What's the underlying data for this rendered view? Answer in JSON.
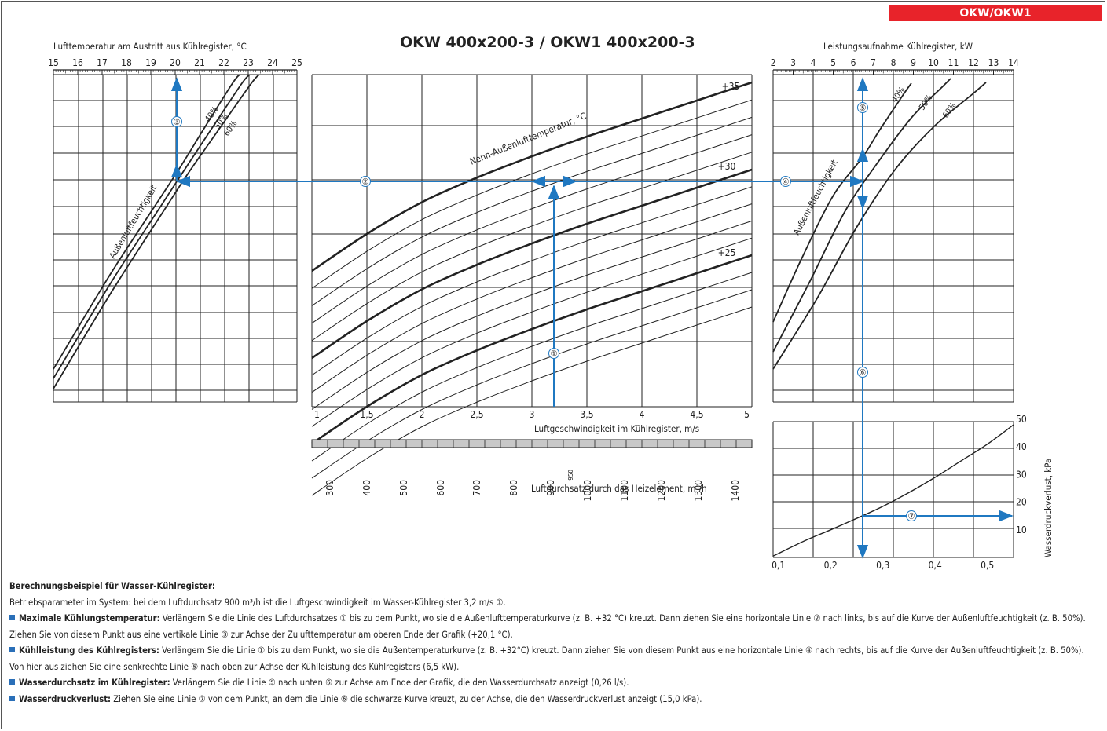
{
  "badge": "OKW/OKW1",
  "title": "OKW 400x200-3 / OKW1 400x200-3",
  "chart_data": [
    {
      "type": "line",
      "xlabel": "Lufttemperatur am Austritt aus Kühlregister, °C",
      "x_ticks": [
        15,
        16,
        17,
        18,
        19,
        20,
        21,
        22,
        23,
        24,
        25
      ],
      "xlim": [
        15,
        25
      ],
      "series": [
        {
          "name": "40%"
        },
        {
          "name": "50%"
        },
        {
          "name": "60%"
        }
      ],
      "curve_label": "Außenluftfeuchtigkeit",
      "grid": true
    },
    {
      "type": "line",
      "curve_label": "Nenn-Außenlufttemperatur, °C",
      "series": [
        {
          "name": "+35"
        },
        {
          "name": "+30"
        },
        {
          "name": "+25"
        }
      ],
      "xlabel": "Luftgeschwindigkeit im Kühlregister, m/s",
      "x_ticks": [
        "1",
        "1,5",
        "2",
        "2,5",
        "3",
        "3,5",
        "4",
        "4,5",
        "5"
      ],
      "xlim": [
        1,
        5
      ],
      "x2label": "Luftdurchsatz durch das Heizelement, m³/h",
      "x2_ticks": [
        "300",
        "400",
        "500",
        "600",
        "700",
        "800",
        "900",
        "950",
        "1000",
        "1100",
        "1200",
        "1300",
        "1400"
      ],
      "grid": true
    },
    {
      "type": "line",
      "xlabel": "Leistungsaufnahme Kühlregister, kW",
      "x_ticks": [
        2,
        3,
        4,
        5,
        6,
        7,
        8,
        9,
        10,
        11,
        12,
        13,
        14
      ],
      "xlim": [
        2,
        14
      ],
      "series": [
        {
          "name": "40%"
        },
        {
          "name": "50%"
        },
        {
          "name": "60%"
        }
      ],
      "curve_label": "Außenluftfeuchtigkeit",
      "grid": true
    },
    {
      "type": "line",
      "xlabel": "Wasserdurchsatz im Kühlregister, l/s",
      "x_ticks": [
        "0,1",
        "0,2",
        "0,3",
        "0,4",
        "0,5"
      ],
      "xlim": [
        0.09,
        0.55
      ],
      "ylabel": "Wasserdruckverlust, kPa",
      "y_ticks": [
        10,
        20,
        30,
        40,
        50
      ],
      "ylim": [
        0,
        50
      ],
      "series": [
        {
          "x": [
            0.09,
            0.15,
            0.2,
            0.26,
            0.3,
            0.35,
            0.4,
            0.45,
            0.5,
            0.55
          ],
          "y": [
            0.5,
            6,
            10,
            15,
            18.5,
            23.5,
            29,
            35,
            41,
            48
          ]
        }
      ],
      "grid": true
    }
  ],
  "markers": [
    "①",
    "②",
    "③",
    "④",
    "⑤",
    "⑥",
    "⑦"
  ],
  "description": {
    "heading": "Berechnungsbeispiel für Wasser-Kühlregister:",
    "intro_a": "Betriebsparameter im System: bei dem Luftdurchsatz 900 m³/h ist die Luftgeschwindigkeit im Wasser-Kühlregister 3,2 m/s ",
    "intro_b": ".",
    "p1_label": "Maximale Kühlungstemperatur:",
    "p1_a": " Verlängern Sie die Linie des Luftdurchsatzes ",
    "p1_b": " bis zu dem Punkt, wo sie die Außenlufttemperaturkurve (z. B. +32 °C) kreuzt. Dann ziehen Sie eine horizontale Linie ",
    "p1_c": " nach links, bis auf die Kurve der Außenluftfeuchtigkeit (z. B. 50%). Ziehen Sie von diesem Punkt aus eine vertikale Linie ",
    "p1_d": " zur Achse der Zulufttemperatur am oberen Ende der Grafik (+20,1 °C).",
    "p2_label": "Kühlleistung des Kühlregisters:",
    "p2_a": " Verlängern Sie die Linie ",
    "p2_b": " bis zu dem Punkt, wo sie die Außentemperaturkurve (z. B. +32°C) kreuzt. Dann  ziehen Sie von diesem Punkt aus eine horizontale Linie ",
    "p2_c": " nach rechts, bis auf die Kurve der Außenluftfeuchtigkeit (z. B. 50%). Von hier aus ziehen Sie eine senkrechte Linie ",
    "p2_d": " nach oben zur Achse der Kühlleistung des Kühlregisters (6,5 kW).",
    "p3_label": "Wasserdurchsatz im Kühlregister:",
    "p3_a": " Verlängern Sie die Linie ",
    "p3_b": " nach unten ",
    "p3_c": " zur Achse am Ende der Grafik, die den Wasserdurchsatz anzeigt (0,26 l/s).",
    "p4_label": "Wasserdruckverlust:",
    "p4_a": " Ziehen Sie eine Linie ",
    "p4_b": " von dem Punkt, an dem die Linie ",
    "p4_c": " die schwarze Kurve kreuzt, zu der Achse, die den Wasserdruckverlust anzeigt (15,0 kPa)."
  },
  "colors": {
    "accent": "#e8232a",
    "guide": "#1f78c1",
    "grid": "#222222",
    "scale_bar": "#c8c8c8"
  }
}
